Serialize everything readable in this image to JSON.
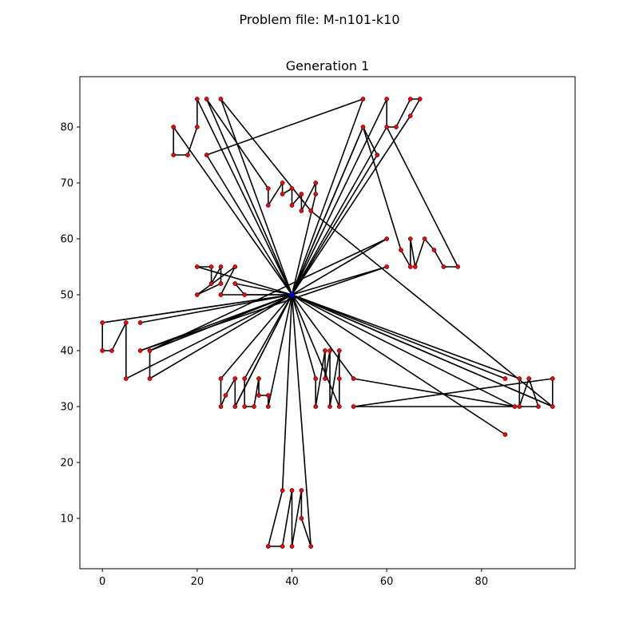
{
  "figure": {
    "suptitle": "Problem file: M-n101-k10"
  },
  "chart_data": {
    "type": "line",
    "title": "Generation 1",
    "xlabel": "",
    "ylabel": "",
    "xlim": [
      -4.75,
      99.75
    ],
    "ylim": [
      1.0,
      89.0
    ],
    "xticks": [
      0,
      20,
      40,
      60,
      80
    ],
    "yticks": [
      10,
      20,
      30,
      40,
      50,
      60,
      70,
      80
    ],
    "grid": false,
    "depot": {
      "x": 40,
      "y": 50
    },
    "colors": {
      "route": "#000000",
      "customer": "#ff0000",
      "depot": "#0000ff"
    },
    "customers": [
      {
        "x": 15,
        "y": 80
      },
      {
        "x": 15,
        "y": 75
      },
      {
        "x": 18,
        "y": 75
      },
      {
        "x": 20,
        "y": 80
      },
      {
        "x": 20,
        "y": 85
      },
      {
        "x": 22,
        "y": 85
      },
      {
        "x": 25,
        "y": 85
      },
      {
        "x": 22,
        "y": 75
      },
      {
        "x": 35,
        "y": 69
      },
      {
        "x": 35,
        "y": 66
      },
      {
        "x": 38,
        "y": 70
      },
      {
        "x": 38,
        "y": 68
      },
      {
        "x": 40,
        "y": 69
      },
      {
        "x": 40,
        "y": 66
      },
      {
        "x": 42,
        "y": 68
      },
      {
        "x": 42,
        "y": 65
      },
      {
        "x": 45,
        "y": 70
      },
      {
        "x": 45,
        "y": 68
      },
      {
        "x": 44,
        "y": 65
      },
      {
        "x": 55,
        "y": 85
      },
      {
        "x": 60,
        "y": 85
      },
      {
        "x": 60,
        "y": 80
      },
      {
        "x": 62,
        "y": 80
      },
      {
        "x": 65,
        "y": 85
      },
      {
        "x": 67,
        "y": 85
      },
      {
        "x": 65,
        "y": 82
      },
      {
        "x": 55,
        "y": 80
      },
      {
        "x": 58,
        "y": 75
      },
      {
        "x": 60,
        "y": 60
      },
      {
        "x": 60,
        "y": 55
      },
      {
        "x": 63,
        "y": 58
      },
      {
        "x": 65,
        "y": 60
      },
      {
        "x": 65,
        "y": 55
      },
      {
        "x": 66,
        "y": 55
      },
      {
        "x": 68,
        "y": 60
      },
      {
        "x": 70,
        "y": 58
      },
      {
        "x": 72,
        "y": 55
      },
      {
        "x": 75,
        "y": 55
      },
      {
        "x": 20,
        "y": 55
      },
      {
        "x": 20,
        "y": 50
      },
      {
        "x": 23,
        "y": 55
      },
      {
        "x": 23,
        "y": 52
      },
      {
        "x": 25,
        "y": 55
      },
      {
        "x": 25,
        "y": 52
      },
      {
        "x": 25,
        "y": 50
      },
      {
        "x": 28,
        "y": 55
      },
      {
        "x": 28,
        "y": 52
      },
      {
        "x": 30,
        "y": 50
      },
      {
        "x": 0,
        "y": 45
      },
      {
        "x": 0,
        "y": 40
      },
      {
        "x": 2,
        "y": 40
      },
      {
        "x": 5,
        "y": 45
      },
      {
        "x": 5,
        "y": 35
      },
      {
        "x": 8,
        "y": 45
      },
      {
        "x": 8,
        "y": 40
      },
      {
        "x": 10,
        "y": 40
      },
      {
        "x": 10,
        "y": 35
      },
      {
        "x": 25,
        "y": 35
      },
      {
        "x": 25,
        "y": 30
      },
      {
        "x": 26,
        "y": 32
      },
      {
        "x": 28,
        "y": 35
      },
      {
        "x": 28,
        "y": 30
      },
      {
        "x": 30,
        "y": 35
      },
      {
        "x": 30,
        "y": 30
      },
      {
        "x": 32,
        "y": 30
      },
      {
        "x": 33,
        "y": 35
      },
      {
        "x": 33,
        "y": 32
      },
      {
        "x": 35,
        "y": 32
      },
      {
        "x": 35,
        "y": 30
      },
      {
        "x": 45,
        "y": 35
      },
      {
        "x": 45,
        "y": 30
      },
      {
        "x": 47,
        "y": 40
      },
      {
        "x": 47,
        "y": 35
      },
      {
        "x": 48,
        "y": 40
      },
      {
        "x": 48,
        "y": 30
      },
      {
        "x": 50,
        "y": 40
      },
      {
        "x": 50,
        "y": 35
      },
      {
        "x": 50,
        "y": 30
      },
      {
        "x": 53,
        "y": 35
      },
      {
        "x": 53,
        "y": 30
      },
      {
        "x": 85,
        "y": 35
      },
      {
        "x": 87,
        "y": 30
      },
      {
        "x": 88,
        "y": 35
      },
      {
        "x": 88,
        "y": 30
      },
      {
        "x": 90,
        "y": 35
      },
      {
        "x": 92,
        "y": 30
      },
      {
        "x": 95,
        "y": 35
      },
      {
        "x": 95,
        "y": 30
      },
      {
        "x": 85,
        "y": 25
      },
      {
        "x": 35,
        "y": 5
      },
      {
        "x": 38,
        "y": 15
      },
      {
        "x": 38,
        "y": 5
      },
      {
        "x": 40,
        "y": 15
      },
      {
        "x": 40,
        "y": 5
      },
      {
        "x": 42,
        "y": 15
      },
      {
        "x": 42,
        "y": 10
      },
      {
        "x": 44,
        "y": 5
      }
    ],
    "routes": [
      [
        [
          40,
          50
        ],
        [
          15,
          80
        ],
        [
          15,
          75
        ],
        [
          18,
          75
        ],
        [
          20,
          80
        ],
        [
          20,
          85
        ],
        [
          40,
          50
        ]
      ],
      [
        [
          40,
          50
        ],
        [
          22,
          85
        ],
        [
          35,
          69
        ],
        [
          35,
          66
        ],
        [
          38,
          70
        ],
        [
          38,
          68
        ],
        [
          40,
          69
        ],
        [
          40,
          66
        ],
        [
          42,
          68
        ],
        [
          42,
          65
        ],
        [
          45,
          70
        ],
        [
          45,
          68
        ],
        [
          40,
          50
        ]
      ],
      [
        [
          40,
          50
        ],
        [
          25,
          85
        ],
        [
          44,
          65
        ],
        [
          95,
          30
        ],
        [
          40,
          50
        ]
      ],
      [
        [
          40,
          50
        ],
        [
          22,
          75
        ],
        [
          55,
          85
        ],
        [
          40,
          50
        ]
      ],
      [
        [
          40,
          50
        ],
        [
          60,
          85
        ],
        [
          60,
          80
        ],
        [
          62,
          80
        ],
        [
          65,
          85
        ],
        [
          67,
          85
        ],
        [
          65,
          82
        ],
        [
          40,
          50
        ]
      ],
      [
        [
          40,
          50
        ],
        [
          55,
          80
        ],
        [
          58,
          75
        ],
        [
          40,
          50
        ]
      ],
      [
        [
          40,
          50
        ],
        [
          60,
          80
        ],
        [
          75,
          55
        ],
        [
          72,
          55
        ],
        [
          70,
          58
        ],
        [
          68,
          60
        ],
        [
          66,
          55
        ],
        [
          65,
          60
        ],
        [
          65,
          55
        ],
        [
          63,
          58
        ],
        [
          55,
          80
        ],
        [
          40,
          50
        ]
      ],
      [
        [
          40,
          50
        ],
        [
          60,
          60
        ],
        [
          10,
          40
        ],
        [
          40,
          50
        ]
      ],
      [
        [
          40,
          50
        ],
        [
          60,
          55
        ],
        [
          8,
          40
        ],
        [
          40,
          50
        ]
      ],
      [
        [
          40,
          50
        ],
        [
          20,
          55
        ],
        [
          23,
          55
        ],
        [
          23,
          52
        ],
        [
          25,
          55
        ],
        [
          25,
          52
        ],
        [
          20,
          50
        ],
        [
          28,
          55
        ],
        [
          25,
          50
        ],
        [
          40,
          50
        ]
      ],
      [
        [
          40,
          50
        ],
        [
          28,
          52
        ],
        [
          30,
          50
        ],
        [
          40,
          50
        ]
      ],
      [
        [
          40,
          50
        ],
        [
          8,
          45
        ],
        [
          40,
          50
        ]
      ],
      [
        [
          40,
          50
        ],
        [
          0,
          45
        ],
        [
          0,
          40
        ],
        [
          2,
          40
        ],
        [
          5,
          45
        ],
        [
          5,
          35
        ],
        [
          40,
          50
        ]
      ],
      [
        [
          40,
          50
        ],
        [
          10,
          40
        ],
        [
          10,
          35
        ],
        [
          40,
          50
        ]
      ],
      [
        [
          40,
          50
        ],
        [
          25,
          35
        ],
        [
          25,
          30
        ],
        [
          26,
          32
        ],
        [
          28,
          35
        ],
        [
          28,
          30
        ],
        [
          40,
          50
        ]
      ],
      [
        [
          40,
          50
        ],
        [
          30,
          35
        ],
        [
          30,
          30
        ],
        [
          32,
          30
        ],
        [
          33,
          35
        ],
        [
          33,
          32
        ],
        [
          35,
          32
        ],
        [
          35,
          30
        ],
        [
          40,
          50
        ]
      ],
      [
        [
          40,
          50
        ],
        [
          45,
          35
        ],
        [
          45,
          30
        ],
        [
          47,
          40
        ],
        [
          47,
          35
        ],
        [
          48,
          40
        ],
        [
          48,
          30
        ],
        [
          50,
          40
        ],
        [
          50,
          35
        ],
        [
          50,
          30
        ],
        [
          40,
          50
        ]
      ],
      [
        [
          40,
          50
        ],
        [
          53,
          35
        ],
        [
          87,
          30
        ],
        [
          40,
          50
        ]
      ],
      [
        [
          40,
          50
        ],
        [
          85,
          35
        ],
        [
          40,
          50
        ]
      ],
      [
        [
          40,
          50
        ],
        [
          88,
          35
        ],
        [
          88,
          30
        ],
        [
          90,
          35
        ],
        [
          92,
          30
        ],
        [
          53,
          30
        ],
        [
          95,
          35
        ],
        [
          95,
          30
        ],
        [
          40,
          50
        ]
      ],
      [
        [
          40,
          50
        ],
        [
          85,
          25
        ],
        [
          40,
          50
        ]
      ],
      [
        [
          40,
          50
        ],
        [
          38,
          15
        ],
        [
          35,
          5
        ],
        [
          38,
          5
        ],
        [
          40,
          15
        ],
        [
          40,
          5
        ],
        [
          42,
          15
        ],
        [
          42,
          10
        ],
        [
          44,
          5
        ],
        [
          40,
          50
        ]
      ],
      [
        [
          40,
          50
        ],
        [
          0,
          45
        ],
        [
          40,
          50
        ]
      ],
      [
        [
          40,
          50
        ],
        [
          28,
          30
        ],
        [
          40,
          50
        ]
      ]
    ]
  }
}
